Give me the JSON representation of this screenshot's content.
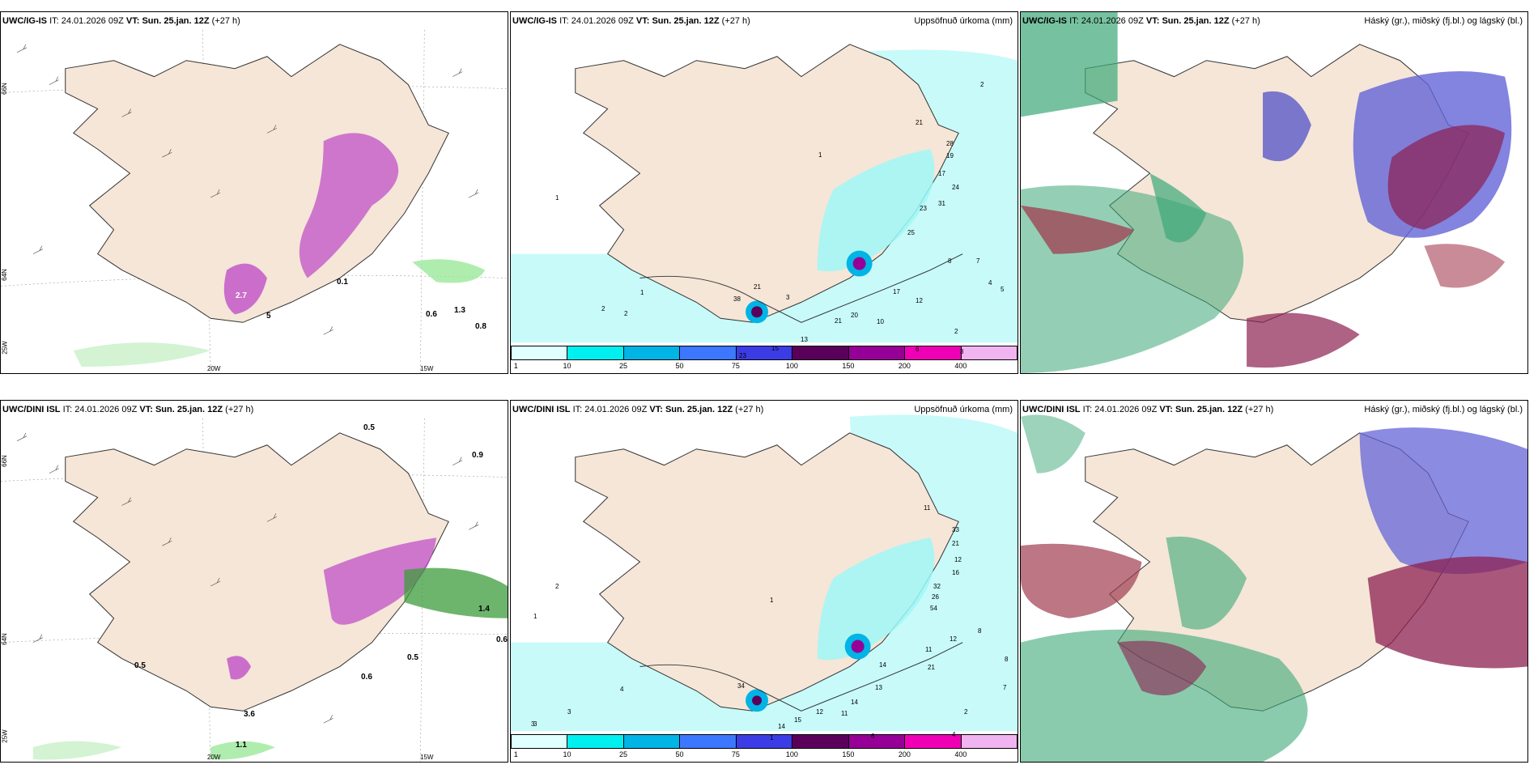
{
  "rows": [
    {
      "model": "UWC/IG-IS",
      "it_label": "IT:",
      "it_value": "24.01.2026 09Z",
      "vt_label": "VT:",
      "vt_value": "Sun. 25.jan. 12Z",
      "lead": "(+27 h)"
    },
    {
      "model": "UWC/DINI ISL",
      "it_label": "IT:",
      "it_value": "24.01.2026 09Z",
      "vt_label": "VT:",
      "vt_value": "Sun. 25.jan. 12Z",
      "lead": "(+27 h)"
    }
  ],
  "precip_title": "Uppsöfnuð úrkoma (mm)",
  "cloud_title": "Háský (gr.), miðský (fj.bl.) og lágský (bl.)",
  "colorbar": {
    "ticks": [
      "1",
      "10",
      "25",
      "50",
      "75",
      "100",
      "150",
      "200",
      "400"
    ],
    "colors": [
      "#e0ffff",
      "#00f0f0",
      "#00b4e6",
      "#3c78ff",
      "#3c3ce6",
      "#5a005a",
      "#960096",
      "#f000b4",
      "#f0b4f0"
    ]
  },
  "axes": {
    "lon": [
      "20W",
      "15W"
    ],
    "lat_top": "66N",
    "lat_mid": "64N",
    "lat_left_top": "66N",
    "lat_left_mid": "64N",
    "lon_left": "25W"
  },
  "labels_wind_top": [
    "0.6",
    "0.8",
    "1.3",
    "2.7",
    "5",
    "0.1"
  ],
  "labels_wind_bottom": [
    "0.5",
    "0.9",
    "0.5",
    "0.6",
    "0.5",
    "1.1",
    "0.6",
    "1.4",
    "3.6"
  ],
  "labels_precip_top": [
    "1",
    "2",
    "2",
    "1",
    "21",
    "28",
    "19",
    "17",
    "24",
    "23",
    "31",
    "25",
    "8",
    "7",
    "4",
    "5",
    "17",
    "12",
    "10",
    "20",
    "21",
    "13",
    "15",
    "23",
    "6",
    "3",
    "2",
    "2",
    "1",
    "3",
    "38",
    "21"
  ],
  "labels_precip_bottom": [
    "2",
    "3",
    "1",
    "1",
    "11",
    "33",
    "21",
    "12",
    "16",
    "32",
    "26",
    "54",
    "12",
    "11",
    "21",
    "14",
    "13",
    "14",
    "11",
    "12",
    "15",
    "14",
    "8",
    "6",
    "4",
    "3",
    "1",
    "34",
    "4",
    "3",
    "2",
    "8",
    "7"
  ],
  "colors": {
    "land": "#f5e6d8",
    "sea": "#ffffff",
    "wind_land": "#eadacb",
    "magenta": "#c050c8",
    "green": "#9be89b",
    "cyan_light": "#c8fafa"
  }
}
